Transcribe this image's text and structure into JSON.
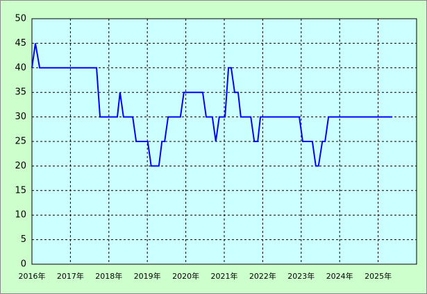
{
  "chart_data": {
    "type": "line",
    "x": [
      2016.0,
      2016.09,
      2016.2,
      2017.68,
      2017.77,
      2018.22,
      2018.29,
      2018.38,
      2018.62,
      2018.71,
      2019.01,
      2019.1,
      2019.3,
      2019.38,
      2019.45,
      2019.54,
      2019.86,
      2019.95,
      2020.44,
      2020.53,
      2020.69,
      2020.78,
      2020.87,
      2021.02,
      2021.11,
      2021.18,
      2021.27,
      2021.36,
      2021.43,
      2021.69,
      2021.78,
      2021.87,
      2021.94,
      2022.95,
      2023.04,
      2023.29,
      2023.38,
      2023.45,
      2023.55,
      2023.62,
      2023.71,
      2025.37
    ],
    "series": [
      {
        "color": "#0000ff",
        "values": [
          40,
          45,
          40,
          40,
          30,
          30,
          35,
          30,
          30,
          25,
          25,
          20,
          20,
          25,
          25,
          30,
          30,
          35,
          35,
          30,
          30,
          25,
          30,
          30,
          40,
          40,
          35,
          35,
          30,
          30,
          25,
          25,
          30,
          30,
          25,
          25,
          20,
          20,
          25,
          25,
          30,
          30
        ]
      }
    ],
    "xlim": [
      2016,
      2026
    ],
    "xticks": [
      {
        "value": 2016,
        "label": "2016年"
      },
      {
        "value": 2017,
        "label": "2017年"
      },
      {
        "value": 2018,
        "label": "2018年"
      },
      {
        "value": 2019,
        "label": "2019年"
      },
      {
        "value": 2020,
        "label": "2020年"
      },
      {
        "value": 2021,
        "label": "2021年"
      },
      {
        "value": 2022,
        "label": "2022年"
      },
      {
        "value": 2023,
        "label": "2023年"
      },
      {
        "value": 2024,
        "label": "2024年"
      },
      {
        "value": 2025,
        "label": "2025年"
      }
    ],
    "ylim": [
      0,
      50
    ],
    "yticks": [
      0,
      5,
      10,
      15,
      20,
      25,
      30,
      35,
      40,
      45,
      50
    ],
    "grid": true
  }
}
